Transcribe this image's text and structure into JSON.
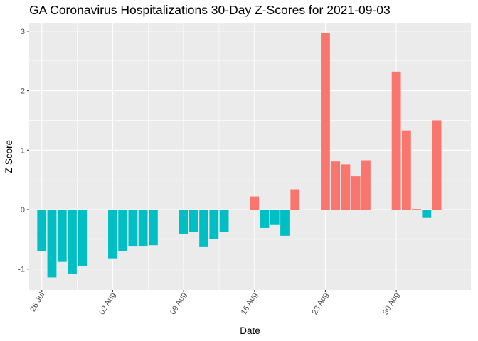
{
  "chart_data": {
    "type": "bar",
    "title": "GA Coronavirus Hospitalizations 30-Day Z-Scores for 2021-09-03",
    "xlabel": "Date",
    "ylabel": "Z Score",
    "ylim": [
      -1.35,
      3.13
    ],
    "y_ticks": [
      -1,
      0,
      1,
      2,
      3
    ],
    "x_ticks": [
      {
        "date": "2021-07-26",
        "label": "26 Jul"
      },
      {
        "date": "2021-08-02",
        "label": "02 Aug"
      },
      {
        "date": "2021-08-09",
        "label": "09 Aug"
      },
      {
        "date": "2021-08-16",
        "label": "16 Aug"
      },
      {
        "date": "2021-08-23",
        "label": "23 Aug"
      },
      {
        "date": "2021-08-30",
        "label": "30 Aug"
      }
    ],
    "positive_color": "#F8766D",
    "negative_color": "#00BFC4",
    "panel_color": "#EBEBEB",
    "grid": true,
    "legend": "none",
    "x": [
      "2021-07-26",
      "2021-07-27",
      "2021-07-28",
      "2021-07-29",
      "2021-07-30",
      "2021-08-02",
      "2021-08-03",
      "2021-08-04",
      "2021-08-05",
      "2021-08-06",
      "2021-08-09",
      "2021-08-10",
      "2021-08-11",
      "2021-08-12",
      "2021-08-13",
      "2021-08-16",
      "2021-08-17",
      "2021-08-18",
      "2021-08-19",
      "2021-08-20",
      "2021-08-23",
      "2021-08-24",
      "2021-08-25",
      "2021-08-26",
      "2021-08-27",
      "2021-08-30",
      "2021-08-31",
      "2021-09-01",
      "2021-09-02",
      "2021-09-03"
    ],
    "values": [
      -0.7,
      -1.14,
      -0.88,
      -1.08,
      -0.95,
      -0.82,
      -0.7,
      -0.61,
      -0.61,
      -0.6,
      -0.41,
      -0.38,
      -0.62,
      -0.5,
      -0.37,
      0.22,
      -0.31,
      -0.26,
      -0.44,
      0.34,
      2.97,
      0.81,
      0.76,
      0.56,
      0.83,
      2.32,
      1.33,
      0.01,
      -0.14,
      1.5
    ]
  }
}
